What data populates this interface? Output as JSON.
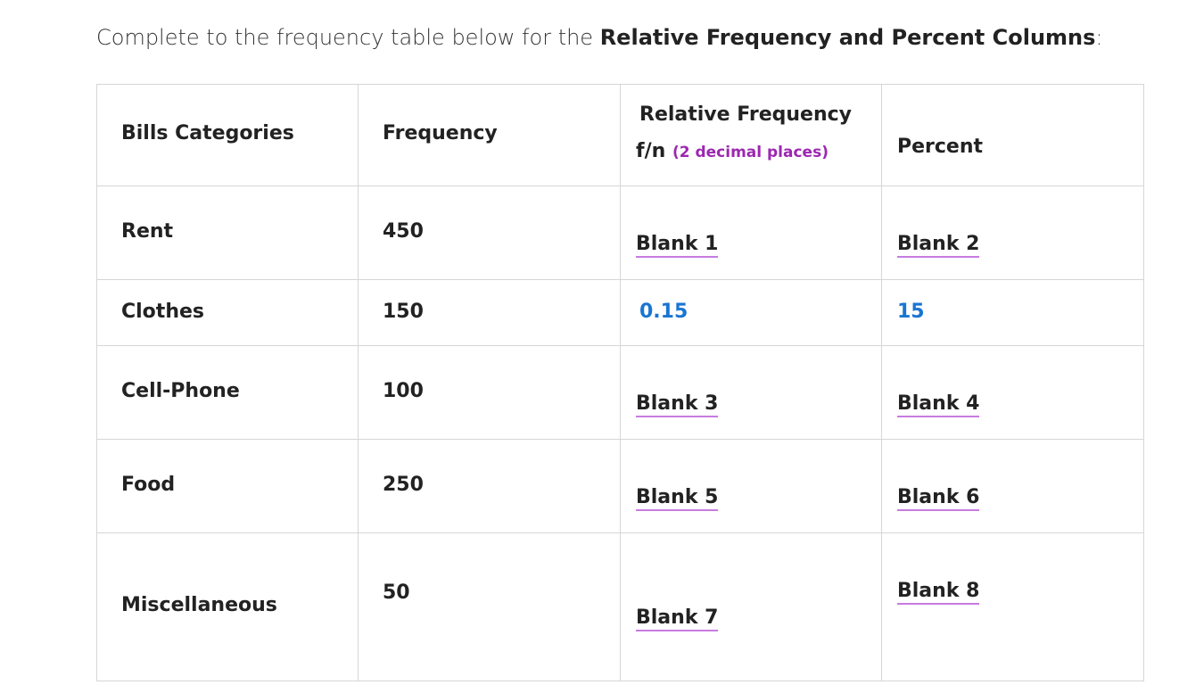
{
  "intro": {
    "prefix": "Complete to the frequency table below for the ",
    "bold": "Relative Frequency and Percent Columns",
    "suffix": ":"
  },
  "table": {
    "headers": {
      "category": "Bills Categories",
      "frequency": "Frequency",
      "relative_line1": "Relative Frequency",
      "relative_line2": "f/n",
      "relative_note": "(2 decimal places)",
      "percent": "Percent"
    },
    "rows": [
      {
        "category": "Rent",
        "frequency": "450",
        "relative": "Blank 1",
        "percent": "Blank 2"
      },
      {
        "category": "Clothes",
        "frequency": "150",
        "relative": "0.15",
        "percent": "15"
      },
      {
        "category": "Cell-Phone",
        "frequency": "100",
        "relative": "Blank 3",
        "percent": "Blank 4"
      },
      {
        "category": "Food",
        "frequency": "250",
        "relative": "Blank 5",
        "percent": "Blank 6"
      },
      {
        "category": "Miscellaneous",
        "frequency": "50",
        "relative": "Blank 7",
        "percent": "Blank 8"
      }
    ]
  },
  "colors": {
    "blank_underline": "#c77be0",
    "given_value": "#1976d2",
    "note": "#9c27b0"
  }
}
